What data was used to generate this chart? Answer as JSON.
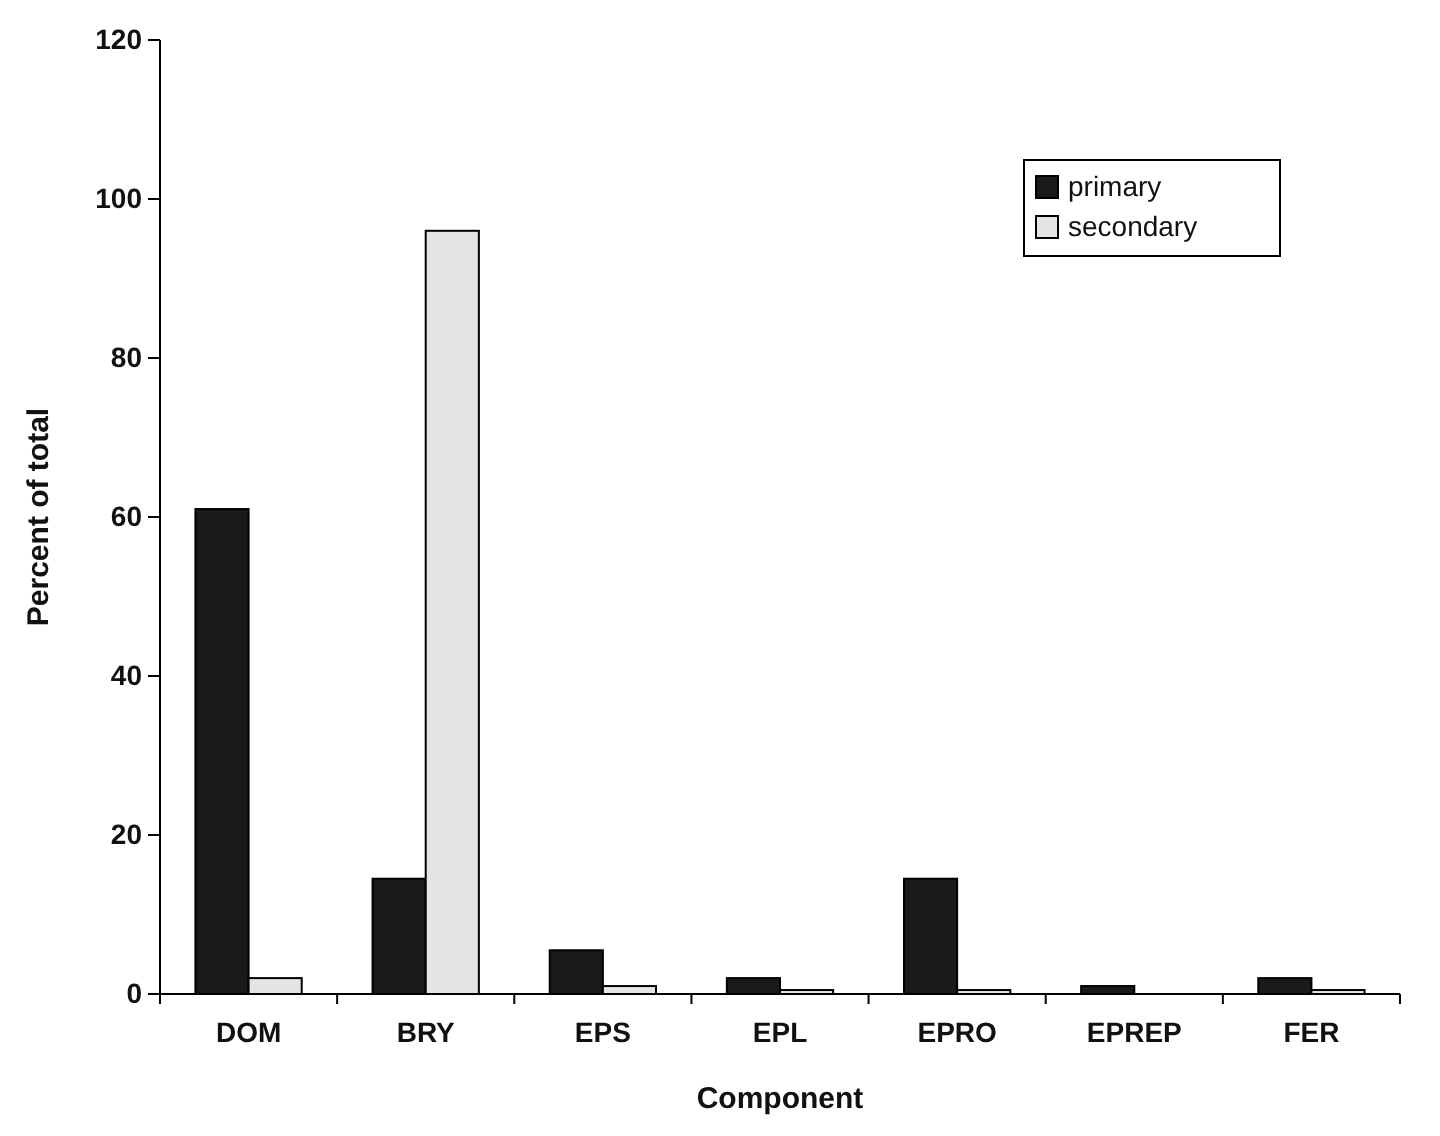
{
  "chart_data": {
    "type": "bar",
    "xlabel": "Component",
    "ylabel": "Percent of total",
    "categories": [
      "DOM",
      "BRY",
      "EPS",
      "EPL",
      "EPRO",
      "EPREP",
      "FER"
    ],
    "series": [
      {
        "name": "primary",
        "color": "#1a1a1a",
        "values": [
          61,
          14.5,
          5.5,
          2,
          14.5,
          1,
          2
        ]
      },
      {
        "name": "secondary",
        "color": "#e4e4e4",
        "values": [
          2,
          96,
          1,
          0.5,
          0.5,
          0,
          0.5
        ]
      }
    ],
    "ylim": [
      0,
      120
    ],
    "yticks": [
      0,
      20,
      40,
      60,
      80,
      100,
      120
    ],
    "grid": false,
    "legend": "top right"
  }
}
